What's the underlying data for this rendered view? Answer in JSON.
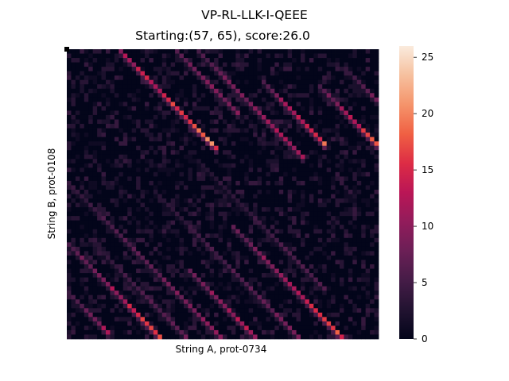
{
  "chart_data": {
    "type": "heatmap",
    "suptitle": "VP-RL-LLK-I-QEEE",
    "title": "Starting:(57, 65), score:26.0",
    "xlabel": "String A, prot-0734",
    "ylabel": "String B, prot-0108",
    "n_cols": 72,
    "n_rows": 66,
    "colorbar": {
      "min": 0,
      "max": 26,
      "ticks": [
        0,
        5,
        10,
        15,
        20,
        25
      ],
      "colormap": "rocket"
    },
    "start_marker": {
      "col": 0,
      "row": 0
    },
    "note_on_values": "cell values approximated: diagonal alignment streaks of increasing score over a dark 0-5 background",
    "diagonals": [
      {
        "offset": 22,
        "start_col": 28,
        "end_col": 72,
        "peak": 26
      },
      {
        "offset": 2,
        "start_col": 38,
        "end_col": 70,
        "peak": 22
      },
      {
        "offset": -12,
        "start_col": 0,
        "end_col": 35,
        "peak": 22
      },
      {
        "offset": -38,
        "start_col": 45,
        "end_col": 60,
        "peak": 22
      },
      {
        "offset": -30,
        "start_col": 28,
        "end_col": 55,
        "peak": 16
      },
      {
        "offset": -50,
        "start_col": 58,
        "end_col": 72,
        "peak": 20
      },
      {
        "offset": 44,
        "start_col": 0,
        "end_col": 22,
        "peak": 20
      },
      {
        "offset": 55,
        "start_col": 0,
        "end_col": 10,
        "peak": 14
      },
      {
        "offset": 30,
        "start_col": 0,
        "end_col": 36,
        "peak": 12
      },
      {
        "offset": -25,
        "start_col": 10,
        "end_col": 40,
        "peak": 12
      },
      {
        "offset": 12,
        "start_col": 20,
        "end_col": 55,
        "peak": 10
      },
      {
        "offset": -60,
        "start_col": 65,
        "end_col": 72,
        "peak": 12
      },
      {
        "offset": 38,
        "start_col": 5,
        "end_col": 30,
        "peak": 10
      },
      {
        "offset": -5,
        "start_col": 30,
        "end_col": 60,
        "peak": 8
      }
    ]
  }
}
